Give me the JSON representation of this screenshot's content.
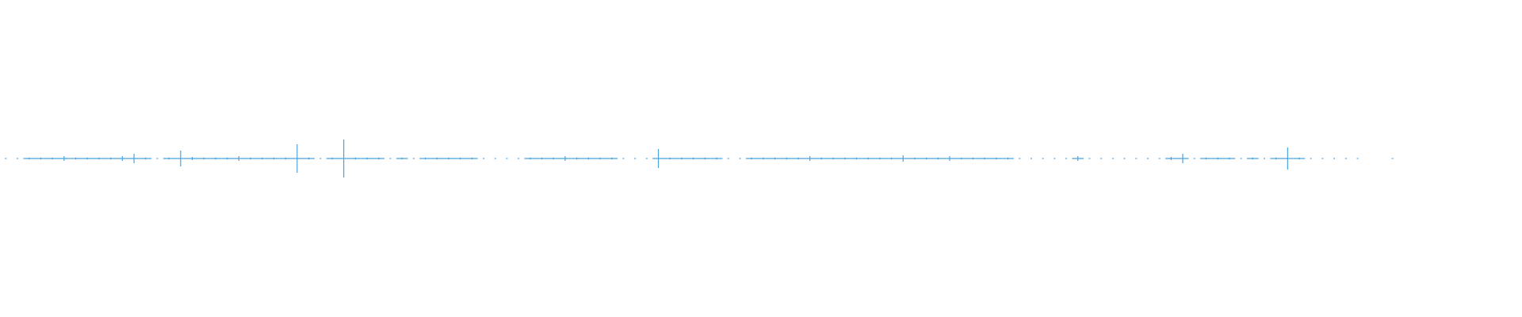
{
  "waveform": {
    "color": "#4aa3df",
    "peaks": [
      0.3,
      0.3,
      0.6,
      0.6,
      0.6,
      1.5,
      0.6,
      0.6,
      0.6,
      0.6,
      1.5,
      3,
      0.6,
      0.3,
      0.6,
      5,
      1,
      0.6,
      0.6,
      0.6,
      1.5,
      0.6,
      0.6,
      0.6,
      0.6,
      9,
      0.6,
      0.3,
      0.6,
      12,
      0.6,
      0.6,
      0.6,
      0.3,
      0.6,
      0.3,
      0.6,
      0.6,
      0.6,
      0.6,
      0.6,
      0.3,
      0.3,
      0.3,
      0.3,
      0.6,
      0.6,
      0.6,
      1.5,
      0.6,
      0.6,
      0.6,
      0.6,
      0.3,
      0.3,
      0.3,
      6,
      0.6,
      0.6,
      0.6,
      0.6,
      0.6,
      0.3,
      0.3,
      0.6,
      0.6,
      0.6,
      0.6,
      0.6,
      1.5,
      0.6,
      0.6,
      0.6,
      0.6,
      0.6,
      0.6,
      0.6,
      2,
      0.6,
      0.6,
      0.6,
      1.5,
      0.6,
      0.6,
      0.6,
      0.6,
      0.6,
      0.3,
      0.3,
      0.3,
      0.3,
      0.3,
      1.5,
      0.3,
      0.3,
      0.3,
      0.3,
      0.3,
      0.3,
      0.3,
      1,
      3,
      0.3,
      0.6,
      0.6,
      0.6,
      0.3,
      0.6,
      0.3,
      0.6,
      7,
      0.6,
      0.3,
      0.3,
      0.3,
      0.3,
      0.3,
      0,
      0,
      0.3
    ]
  }
}
